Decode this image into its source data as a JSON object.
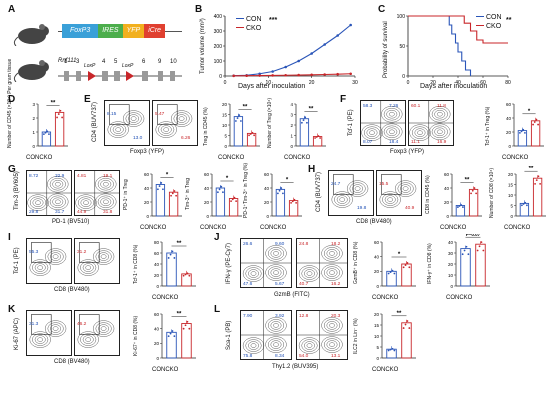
{
  "groups": {
    "con": "CON",
    "cko": "CKO",
    "conko": "CONCKO"
  },
  "colors": {
    "con": "#2a55b8",
    "cko": "#c8262a",
    "foxp3": "#3aa0d8",
    "ires": "#4cae4c",
    "yfp": "#f2b01e",
    "icre": "#e04030"
  },
  "panelA": {
    "letter": "A",
    "construct1": [
      "FoxP3",
      "IRES",
      "YFP",
      "iCre"
    ],
    "gene": "Rnf111",
    "exons_a": [
      "1",
      "3",
      "4",
      "5",
      "6",
      "9",
      "10"
    ],
    "loxp": [
      "LoxP",
      "LoxP"
    ]
  },
  "panelB": {
    "letter": "B",
    "ylabel": "Tumor volume (mm³)",
    "xlabel": "Days after inoculation",
    "yticks": [
      "0",
      "100",
      "200",
      "300",
      "400"
    ],
    "xticks": [
      "0",
      "10",
      "20",
      "30"
    ],
    "sig": "***",
    "legend": [
      "CON",
      "CKO"
    ]
  },
  "panelC": {
    "letter": "C",
    "ylabel": "Probability of survival",
    "xlabel": "Days after inoculation",
    "yticks": [
      "0",
      "50",
      "100"
    ],
    "xticks": [
      "0",
      "20",
      "40",
      "60",
      "80"
    ],
    "sig": "**",
    "legend": [
      "CON",
      "CKO"
    ]
  },
  "panelD": {
    "letter": "D",
    "ylabel": "Number of CD45 (×10⁴) Per gram tissue",
    "yticks": [
      "0",
      "1",
      "2",
      "3"
    ],
    "sig": "**"
  },
  "panelE": {
    "letter": "E",
    "xlabel": "Foxp3 (YFP)",
    "ylabel": "CD4 (BUV737)",
    "con_vals": [
      "8.15",
      "13.0"
    ],
    "cko_vals": [
      "5.47",
      "6.26"
    ],
    "bar1_ylabel": "Treg in CD45 (%)",
    "bar1_ticks": [
      "0",
      "5",
      "10",
      "15",
      "20"
    ],
    "bar1_sig": "**",
    "bar2_ylabel": "Number of Treg (×10⁴)",
    "bar2_ticks": [
      "0",
      "1",
      "2",
      "3",
      "4"
    ],
    "bar2_sig": "**"
  },
  "panelF": {
    "letter": "F",
    "xlabel": "Foxp3 (YFP)",
    "ylabel": "Tcf-1 (PE)",
    "con_vals": [
      "58.3",
      "7.26",
      "8.07",
      "18.4"
    ],
    "cko_vals": [
      "60.1",
      "11.8",
      "11.1",
      "16.9"
    ],
    "bar_ylabel": "Tcf-1⁺ in Treg (%)",
    "bar_ticks": [
      "0",
      "20",
      "40",
      "60"
    ],
    "sig": "*"
  },
  "panelG": {
    "letter": "G",
    "xlabel": "PD-1 (BV510)",
    "ylabel": "Tim-3 (BV605)",
    "con_vals": [
      "8.72",
      "32.9",
      "29.8",
      "31.7"
    ],
    "cko_vals": [
      "4.81",
      "19.1",
      "44.9",
      "31.8"
    ],
    "bar1_ylabel": "PD-1⁺ in Treg",
    "bar1_ticks": [
      "0",
      "20",
      "40",
      "60"
    ],
    "bar1_sig": "*",
    "bar2_ylabel": "Tim-3⁺ in Treg",
    "bar2_ticks": [
      "0",
      "20",
      "40",
      "60"
    ],
    "bar2_sig": "*",
    "bar3_ylabel": "PD-1⁺Tim-3⁺ in Treg (%)",
    "bar3_ticks": [
      "0",
      "20",
      "40",
      "60"
    ],
    "bar3_sig": "*"
  },
  "panelH": {
    "letter": "H",
    "xlabel": "CD8 (BV480)",
    "ylabel": "CD4 (BUV737)",
    "con_vals": [
      "24.7",
      "19.8"
    ],
    "cko_vals": [
      "15.5",
      "40.9"
    ],
    "bar1_ylabel": "CD8 in CD45 (%)",
    "bar1_ticks": [
      "0",
      "20",
      "40",
      "60"
    ],
    "bar1_sig": "**",
    "bar2_ylabel": "Number of CD8 (×10⁴)",
    "bar2_ticks": [
      "0",
      "5",
      "10",
      "15",
      "20"
    ],
    "bar2_sig": "**"
  },
  "panelI": {
    "letter": "I",
    "xlabel": "CD8 (BV480)",
    "ylabel": "Tcf-1 (PE)",
    "con_vals": [
      "55.3"
    ],
    "cko_vals": [
      "31.2"
    ],
    "bar_ylabel": "Tcf-1⁺ in CD8 (%)",
    "bar_ticks": [
      "0",
      "20",
      "40",
      "60",
      "80"
    ],
    "sig": "**"
  },
  "panelJ": {
    "letter": "J",
    "xlabel": "GzmB (FITC)",
    "ylabel": "IFN-γ (PE-Cy7)",
    "con_vals": [
      "26.6",
      "9.60",
      "47.6",
      "5.67"
    ],
    "cko_vals": [
      "24.8",
      "18.2",
      "40.7",
      "16.2"
    ],
    "bar1_ylabel": "GzmB⁺ in CD8 (%)",
    "bar1_ticks": [
      "0",
      "20",
      "40",
      "60"
    ],
    "bar1_sig": "*",
    "bar2_ylabel": "IFN-γ⁺ in CD8 (%)",
    "bar2_ticks": [
      "0",
      "10",
      "20",
      "30",
      "40"
    ],
    "bar2_sig": "P=0.07"
  },
  "panelK": {
    "letter": "K",
    "xlabel": "CD8 (BV480)",
    "ylabel": "Ki-67 (APC)",
    "con_vals": [
      "31.3"
    ],
    "cko_vals": [
      "46.2"
    ],
    "bar_ylabel": "Ki-67⁺ in CD8 (%)",
    "bar_ticks": [
      "0",
      "20",
      "40",
      "60"
    ],
    "sig": "**"
  },
  "panelL": {
    "letter": "L",
    "xlabel": "Thy1.2 (BUV395)",
    "ylabel": "Sca-1 (PB)",
    "con_vals": [
      "7.90",
      "3.92",
      "75.8",
      "8.34"
    ],
    "cko_vals": [
      "12.8",
      "20.3",
      "54.0",
      "13.1"
    ],
    "bar_ylabel": "ILC2 in Lin⁻ (%)",
    "bar_ticks": [
      "0",
      "5",
      "10",
      "15",
      "20"
    ],
    "sig": "**"
  },
  "chart_data": [
    {
      "type": "line",
      "title": "",
      "xlabel": "Days after inoculation",
      "ylabel": "Tumor volume (mm³)",
      "ylim": [
        0,
        400
      ],
      "xlim": [
        0,
        30
      ],
      "series": [
        {
          "name": "CON",
          "x": [
            2,
            5,
            8,
            11,
            14,
            17,
            20,
            23,
            26,
            29
          ],
          "y": [
            2,
            5,
            15,
            30,
            60,
            100,
            150,
            210,
            270,
            340
          ]
        },
        {
          "name": "CKO",
          "x": [
            2,
            5,
            8,
            11,
            14,
            17,
            20,
            23,
            26,
            29
          ],
          "y": [
            1,
            2,
            3,
            4,
            5,
            6,
            8,
            10,
            12,
            15
          ]
        }
      ]
    },
    {
      "type": "line",
      "title": "",
      "xlabel": "Days after inoculation",
      "ylabel": "Probability of survival",
      "ylim": [
        0,
        100
      ],
      "xlim": [
        0,
        80
      ],
      "series": [
        {
          "name": "CON",
          "x": [
            0,
            30,
            33,
            35,
            38,
            40,
            43,
            46,
            50
          ],
          "y": [
            100,
            100,
            85,
            70,
            55,
            40,
            25,
            10,
            0
          ]
        },
        {
          "name": "CKO",
          "x": [
            0,
            40,
            45,
            50,
            55,
            60,
            70,
            80
          ],
          "y": [
            100,
            100,
            88,
            75,
            60,
            55,
            55,
            55
          ]
        }
      ]
    },
    {
      "type": "bar",
      "categories": [
        "CON",
        "CKO"
      ],
      "values": [
        1.0,
        2.4
      ],
      "ylabel": "Number of CD45 (×10⁴) Per gram tissue",
      "ylim": [
        0,
        3
      ]
    },
    {
      "type": "bar",
      "categories": [
        "CON",
        "CKO"
      ],
      "values": [
        14,
        6
      ],
      "ylabel": "Treg in CD45 (%)",
      "ylim": [
        0,
        20
      ]
    },
    {
      "type": "bar",
      "categories": [
        "CON",
        "CKO"
      ],
      "values": [
        2.6,
        0.9
      ],
      "ylabel": "Number of Treg (×10⁴)",
      "ylim": [
        0,
        4
      ]
    },
    {
      "type": "bar",
      "categories": [
        "CON",
        "CKO"
      ],
      "values": [
        22,
        36
      ],
      "ylabel": "Tcf-1⁺ in Treg (%)",
      "ylim": [
        0,
        60
      ]
    },
    {
      "type": "bar",
      "categories": [
        "CON",
        "CKO"
      ],
      "values": [
        45,
        34
      ],
      "ylabel": "PD-1⁺ in Treg",
      "ylim": [
        0,
        60
      ]
    },
    {
      "type": "bar",
      "categories": [
        "CON",
        "CKO"
      ],
      "values": [
        40,
        25
      ],
      "ylabel": "Tim-3⁺ in Treg",
      "ylim": [
        0,
        60
      ]
    },
    {
      "type": "bar",
      "categories": [
        "CON",
        "CKO"
      ],
      "values": [
        38,
        22
      ],
      "ylabel": "PD-1⁺Tim-3⁺ in Treg (%)",
      "ylim": [
        0,
        60
      ]
    },
    {
      "type": "bar",
      "categories": [
        "CON",
        "CKO"
      ],
      "values": [
        15,
        38
      ],
      "ylabel": "CD8 in CD45 (%)",
      "ylim": [
        0,
        60
      ]
    },
    {
      "type": "bar",
      "categories": [
        "CON",
        "CKO"
      ],
      "values": [
        6,
        18
      ],
      "ylabel": "Number of CD8 (×10⁴)",
      "ylim": [
        0,
        20
      ]
    },
    {
      "type": "bar",
      "categories": [
        "CON",
        "CKO"
      ],
      "values": [
        60,
        22
      ],
      "ylabel": "Tcf-1⁺ in CD8 (%)",
      "ylim": [
        0,
        80
      ]
    },
    {
      "type": "bar",
      "categories": [
        "CON",
        "CKO"
      ],
      "values": [
        20,
        30
      ],
      "ylabel": "GzmB⁺ in CD8 (%)",
      "ylim": [
        0,
        60
      ]
    },
    {
      "type": "bar",
      "categories": [
        "CON",
        "CKO"
      ],
      "values": [
        34,
        38
      ],
      "ylabel": "IFN-γ⁺ in CD8 (%)",
      "ylim": [
        0,
        40
      ]
    },
    {
      "type": "bar",
      "categories": [
        "CON",
        "CKO"
      ],
      "values": [
        35,
        47
      ],
      "ylabel": "Ki-67⁺ in CD8 (%)",
      "ylim": [
        0,
        60
      ]
    },
    {
      "type": "bar",
      "categories": [
        "CON",
        "CKO"
      ],
      "values": [
        4,
        16
      ],
      "ylabel": "ILC2 in Lin⁻ (%)",
      "ylim": [
        0,
        20
      ]
    }
  ]
}
